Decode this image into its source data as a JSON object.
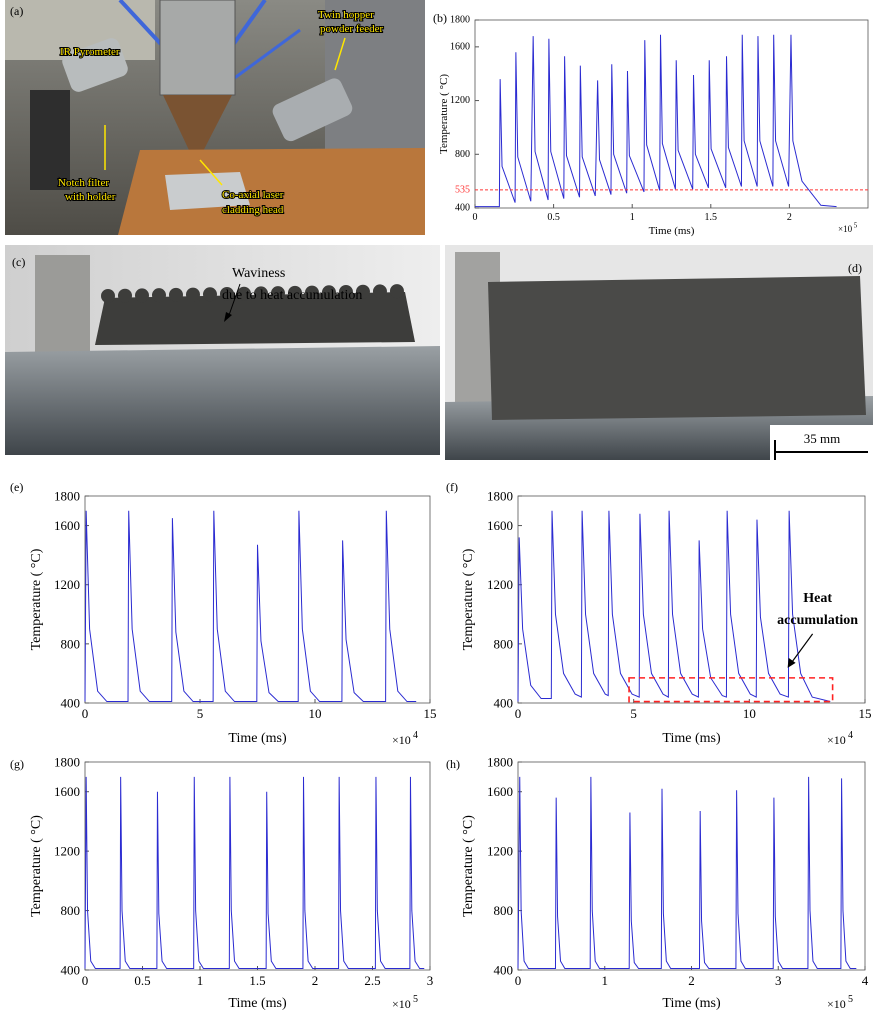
{
  "photos": [
    {
      "panel": "(a)",
      "labels": [
        [
          "IR Pyrometer"
        ],
        [
          "Notch filter",
          "with holder"
        ],
        [
          "Co-axial laser",
          "cladding head"
        ],
        [
          "Twin hopper",
          "powder feeder"
        ]
      ]
    },
    {
      "panel": "(c)",
      "labels": [
        [
          "Waviness",
          "due to heat accumulation"
        ]
      ]
    },
    {
      "panel": "(d)",
      "scale_label": "35 mm"
    }
  ],
  "chart_data": [
    {
      "type": "line",
      "panel": "(b)",
      "x_label": "Time (ms)",
      "y_label": "Temperature ( °C)",
      "x_multiplier": "×10",
      "x_exponent": "5",
      "xlim": [
        0,
        2.5
      ],
      "xticks": [
        0,
        0.5,
        1,
        1.5,
        2
      ],
      "ylim": [
        400,
        1800
      ],
      "yticks": [
        400,
        800,
        1200,
        1600,
        1800
      ],
      "reference_line": 535,
      "reference_color": "#ff3333",
      "x": [
        0,
        0.155,
        0.16,
        0.172,
        0.255,
        0.26,
        0.272,
        0.355,
        0.37,
        0.382,
        0.465,
        0.47,
        0.482,
        0.565,
        0.57,
        0.582,
        0.665,
        0.67,
        0.682,
        0.765,
        0.78,
        0.792,
        0.865,
        0.87,
        0.882,
        0.965,
        0.97,
        0.982,
        1.075,
        1.08,
        1.092,
        1.175,
        1.18,
        1.192,
        1.275,
        1.28,
        1.292,
        1.385,
        1.39,
        1.402,
        1.485,
        1.49,
        1.502,
        1.595,
        1.6,
        1.612,
        1.695,
        1.7,
        1.712,
        1.795,
        1.8,
        1.812,
        1.895,
        1.9,
        1.912,
        1.995,
        2.01,
        2.022,
        2.08,
        2.2,
        2.3
      ],
      "series": [
        {
          "color": "#2b2bd1",
          "values": [
            410,
            410,
            1360,
            710,
            440,
            1560,
            780,
            450,
            1680,
            820,
            460,
            1660,
            820,
            470,
            1530,
            790,
            480,
            1460,
            780,
            490,
            1350,
            760,
            500,
            1470,
            800,
            510,
            1420,
            790,
            520,
            1650,
            870,
            530,
            1690,
            880,
            540,
            1500,
            830,
            540,
            1390,
            800,
            550,
            1500,
            840,
            550,
            1530,
            850,
            560,
            1690,
            900,
            560,
            1680,
            900,
            560,
            1690,
            900,
            560,
            1690,
            900,
            600,
            420,
            410
          ]
        }
      ]
    },
    {
      "type": "line",
      "panel": "(e)",
      "x_label": "Time (ms)",
      "y_label": "Temperature ( °C)",
      "x_multiplier": "×10",
      "x_exponent": "4",
      "xlim": [
        0,
        15
      ],
      "xticks": [
        0,
        5,
        10,
        15
      ],
      "ylim": [
        400,
        1800
      ],
      "yticks": [
        400,
        800,
        1200,
        1600,
        1800
      ],
      "x": [
        0,
        0.05,
        0.2,
        0.55,
        0.95,
        1.87,
        1.9,
        2.05,
        2.4,
        2.8,
        3.77,
        3.8,
        3.95,
        4.3,
        4.7,
        5.57,
        5.6,
        5.75,
        6.1,
        6.5,
        7.47,
        7.5,
        7.65,
        8.0,
        8.4,
        9.27,
        9.3,
        9.45,
        9.8,
        10.2,
        11.17,
        11.2,
        11.35,
        11.7,
        12.1,
        13.07,
        13.1,
        13.25,
        13.6,
        14.0,
        14.4
      ],
      "series": [
        {
          "color": "#2b2bd1",
          "values": [
            410,
            1700,
            900,
            480,
            410,
            410,
            1700,
            900,
            480,
            410,
            410,
            1650,
            880,
            480,
            410,
            410,
            1700,
            900,
            480,
            410,
            410,
            1470,
            820,
            470,
            410,
            410,
            1700,
            900,
            480,
            410,
            410,
            1500,
            830,
            470,
            410,
            410,
            1700,
            900,
            480,
            410,
            410
          ]
        }
      ]
    },
    {
      "type": "line",
      "panel": "(f)",
      "x_label": "Time (ms)",
      "y_label": "Temperature ( °C)",
      "x_multiplier": "×10",
      "x_exponent": "4",
      "xlim": [
        0,
        15
      ],
      "xticks": [
        0,
        5,
        10,
        15
      ],
      "ylim": [
        400,
        1800
      ],
      "yticks": [
        400,
        800,
        1200,
        1600,
        1800
      ],
      "highlight_box": {
        "x": [
          4.8,
          13.6
        ],
        "y": [
          410,
          570
        ]
      },
      "highlight_color": "#ff2222",
      "annotation": [
        "Heat",
        "accumulation"
      ],
      "x": [
        0,
        0.05,
        0.2,
        0.55,
        1.0,
        1.44,
        1.47,
        1.62,
        1.97,
        2.47,
        2.74,
        2.77,
        2.92,
        3.27,
        3.77,
        3.9,
        3.93,
        4.08,
        4.43,
        4.93,
        5.24,
        5.27,
        5.42,
        5.77,
        6.27,
        6.5,
        6.53,
        6.68,
        7.03,
        7.53,
        7.8,
        7.83,
        7.98,
        8.33,
        8.83,
        9.01,
        9.04,
        9.19,
        9.54,
        10.04,
        10.3,
        10.33,
        10.48,
        10.83,
        11.33,
        11.69,
        11.72,
        11.87,
        12.22,
        12.72,
        13.5
      ],
      "series": [
        {
          "color": "#2b2bd1",
          "values": [
            410,
            1520,
            900,
            520,
            430,
            430,
            1700,
            1000,
            600,
            460,
            440,
            1700,
            1000,
            600,
            460,
            450,
            1700,
            1000,
            600,
            460,
            440,
            1680,
            1000,
            600,
            460,
            440,
            1700,
            1000,
            600,
            460,
            440,
            1500,
            900,
            570,
            450,
            440,
            1700,
            1000,
            600,
            460,
            440,
            1640,
            980,
            600,
            460,
            440,
            1700,
            1000,
            600,
            440,
            410
          ]
        }
      ]
    },
    {
      "type": "line",
      "panel": "(g)",
      "x_label": "Time (ms)",
      "y_label": "Temperature ( °C)",
      "x_multiplier": "×10",
      "x_exponent": "5",
      "xlim": [
        0,
        3
      ],
      "xticks": [
        0,
        0.5,
        1,
        1.5,
        2,
        2.5,
        3
      ],
      "ylim": [
        400,
        1800
      ],
      "yticks": [
        400,
        800,
        1200,
        1600,
        1800
      ],
      "x": [
        0,
        0.01,
        0.022,
        0.05,
        0.09,
        0.305,
        0.31,
        0.322,
        0.35,
        0.39,
        0.625,
        0.63,
        0.642,
        0.67,
        0.71,
        0.945,
        0.95,
        0.962,
        0.99,
        1.03,
        1.255,
        1.26,
        1.272,
        1.3,
        1.34,
        1.575,
        1.58,
        1.592,
        1.62,
        1.66,
        1.895,
        1.9,
        1.912,
        1.94,
        1.98,
        2.205,
        2.21,
        2.222,
        2.25,
        2.29,
        2.525,
        2.53,
        2.542,
        2.57,
        2.61,
        2.825,
        2.83,
        2.842,
        2.87,
        2.91,
        2.95
      ],
      "series": [
        {
          "color": "#2b2bd1",
          "values": [
            410,
            1700,
            800,
            460,
            410,
            410,
            1700,
            800,
            460,
            410,
            410,
            1600,
            780,
            460,
            410,
            410,
            1700,
            800,
            460,
            410,
            410,
            1700,
            800,
            460,
            410,
            410,
            1600,
            780,
            460,
            410,
            410,
            1700,
            800,
            460,
            410,
            410,
            1700,
            800,
            460,
            410,
            410,
            1700,
            800,
            460,
            410,
            410,
            1700,
            800,
            460,
            410,
            410
          ]
        }
      ]
    },
    {
      "type": "line",
      "panel": "(h)",
      "x_label": "Time (ms)",
      "y_label": "Temperature ( °C)",
      "x_multiplier": "×10",
      "x_exponent": "5",
      "xlim": [
        0,
        4
      ],
      "xticks": [
        0,
        1,
        2,
        3,
        4
      ],
      "ylim": [
        400,
        1800
      ],
      "yticks": [
        400,
        800,
        1200,
        1600,
        1800
      ],
      "x": [
        0,
        0.02,
        0.036,
        0.07,
        0.12,
        0.432,
        0.44,
        0.456,
        0.49,
        0.54,
        0.832,
        0.84,
        0.856,
        0.89,
        0.94,
        1.282,
        1.29,
        1.306,
        1.34,
        1.39,
        1.652,
        1.66,
        1.676,
        1.71,
        1.76,
        2.092,
        2.1,
        2.116,
        2.15,
        2.2,
        2.512,
        2.52,
        2.536,
        2.57,
        2.62,
        2.942,
        2.95,
        2.966,
        3.0,
        3.05,
        3.342,
        3.35,
        3.366,
        3.4,
        3.45,
        3.722,
        3.73,
        3.746,
        3.78,
        3.83,
        3.9
      ],
      "series": [
        {
          "color": "#2b2bd1",
          "values": [
            410,
            1700,
            800,
            460,
            410,
            410,
            1560,
            760,
            460,
            410,
            410,
            1700,
            800,
            460,
            410,
            410,
            1460,
            730,
            450,
            410,
            410,
            1620,
            780,
            460,
            410,
            410,
            1470,
            730,
            450,
            410,
            410,
            1610,
            780,
            460,
            410,
            410,
            1560,
            760,
            460,
            410,
            410,
            1700,
            800,
            460,
            410,
            410,
            1690,
            800,
            460,
            410,
            410
          ]
        }
      ]
    }
  ]
}
